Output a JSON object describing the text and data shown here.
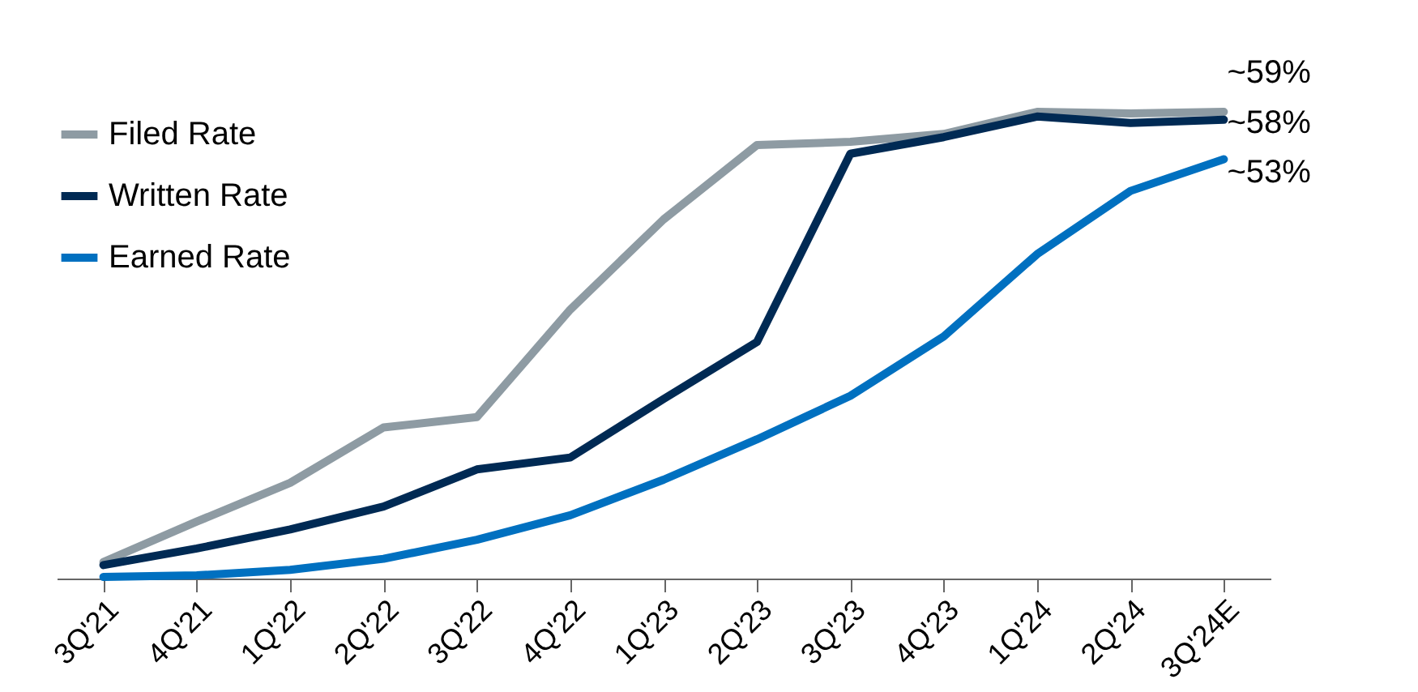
{
  "chart_data": {
    "type": "line",
    "categories": [
      "3Q'21",
      "4Q'21",
      "1Q'22",
      "2Q'22",
      "3Q'22",
      "4Q'22",
      "1Q'23",
      "2Q'23",
      "3Q'23",
      "4Q'23",
      "1Q'24",
      "2Q'24",
      "3Q'24E"
    ],
    "series": [
      {
        "name": "Filed Rate",
        "color": "#8e9ba3",
        "values": [
          2.1,
          7.2,
          12.1,
          19.1,
          20.4,
          34,
          45.4,
          54.8,
          55.2,
          56.2,
          59,
          58.8,
          59
        ],
        "value_labels": [
          null,
          null,
          null,
          null,
          null,
          null,
          null,
          null,
          null,
          null,
          null,
          null,
          "~59%"
        ]
      },
      {
        "name": "Written Rate",
        "color": "#002a54",
        "values": [
          1.7,
          3.8,
          6.2,
          9.1,
          13.8,
          15.3,
          22.7,
          29.9,
          53.7,
          55.8,
          58.4,
          57.6,
          58
        ],
        "value_labels": [
          null,
          null,
          null,
          null,
          null,
          null,
          null,
          null,
          null,
          null,
          null,
          null,
          "~58%"
        ]
      },
      {
        "name": "Earned Rate",
        "color": "#0070c0",
        "values": [
          0.2,
          0.4,
          1.1,
          2.5,
          4.9,
          8,
          12.5,
          17.6,
          23.1,
          30.6,
          41,
          49,
          53
        ],
        "value_labels": [
          null,
          null,
          null,
          null,
          null,
          null,
          null,
          null,
          null,
          null,
          null,
          null,
          "~53%"
        ]
      }
    ],
    "legend": "top left",
    "grid": false,
    "marker": "none",
    "line_style": "solid"
  }
}
